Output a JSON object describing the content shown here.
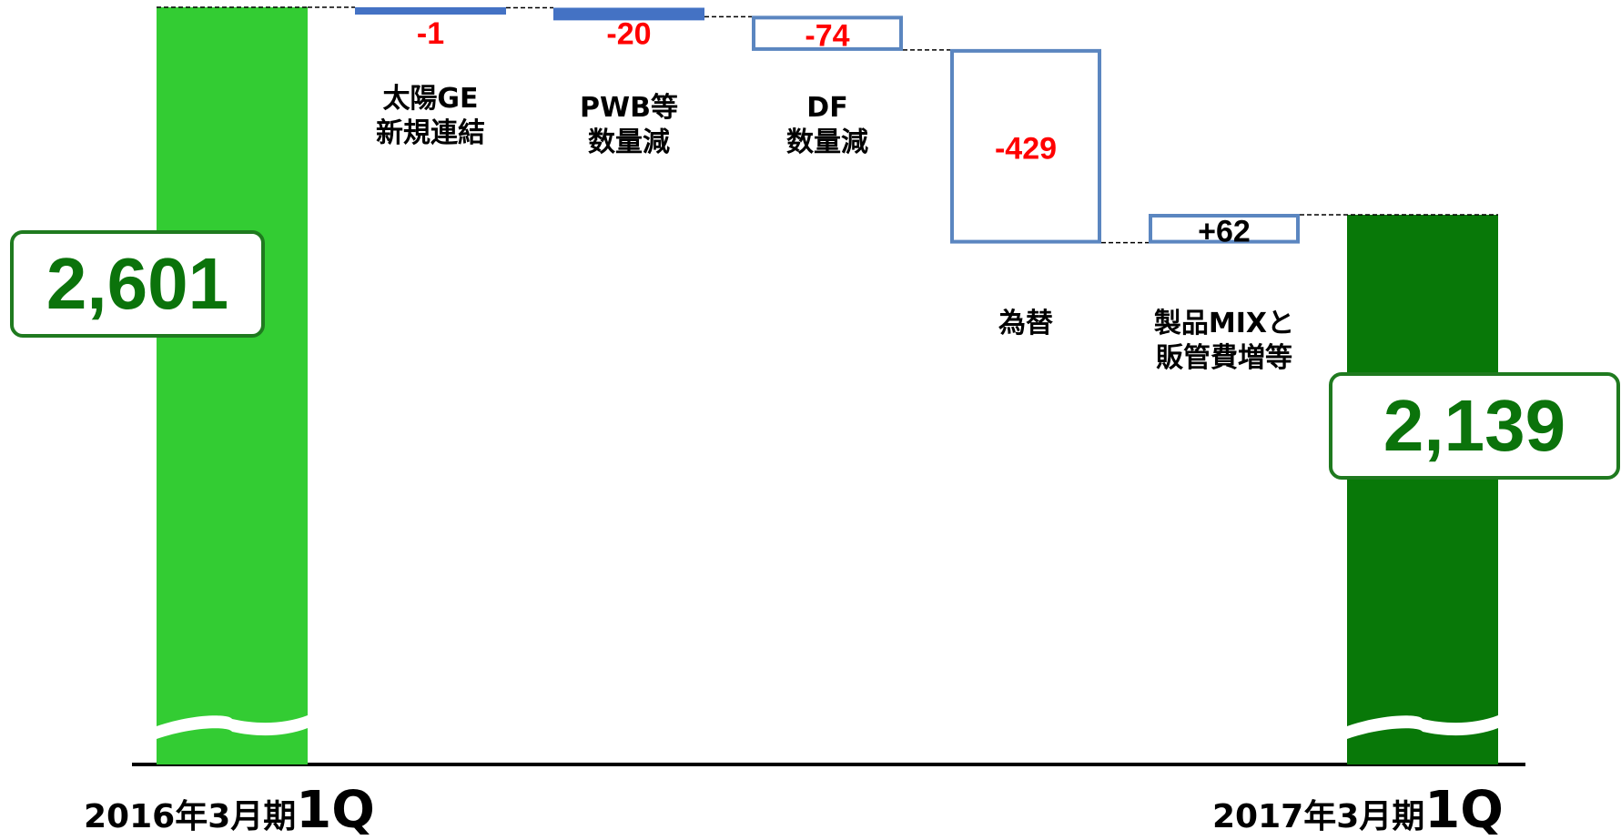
{
  "chart_data": {
    "type": "waterfall",
    "start": {
      "label": "2016年3月期1Q",
      "value": 2601
    },
    "end": {
      "label": "2017年3月期1Q",
      "value": 2139
    },
    "steps": [
      {
        "label": [
          "太陽GE",
          "新規連結"
        ],
        "value": -1,
        "display": "-1"
      },
      {
        "label": [
          "PWB等",
          "数量減"
        ],
        "value": -20,
        "display": "-20"
      },
      {
        "label": [
          "DF",
          "数量減"
        ],
        "value": -74,
        "display": "-74"
      },
      {
        "label": [
          "為替"
        ],
        "value": -429,
        "display": "-429"
      },
      {
        "label": [
          "製品MIXと",
          "販管費増等"
        ],
        "value": 62,
        "display": "+62"
      }
    ],
    "axis_break": true
  },
  "totals": {
    "start_display": "2,601",
    "end_display": "2,139"
  },
  "periods": {
    "start": {
      "prefix": "2016年3月期",
      "suffix": "1Q"
    },
    "end": {
      "prefix": "2017年3月期",
      "suffix": "1Q"
    }
  },
  "colors": {
    "start_bar": "#33cc33",
    "end_bar": "#087808",
    "step_outline": "#5b86c0",
    "step_fill_small": "#4472c4",
    "negative_text": "#ff0000",
    "positive_text": "#000000",
    "total_text": "#0b730b"
  }
}
